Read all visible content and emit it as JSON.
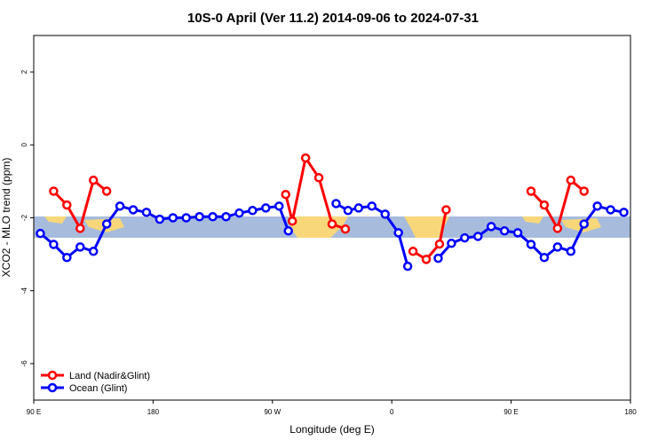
{
  "chart_data": {
    "type": "line",
    "title": "10S-0 April (Ver 11.2)   2014-09-06 to 2024-07-31",
    "x_label": "Longitude (deg E)",
    "y_label": "XCO2 - MLO trend (ppm)",
    "xlim": [
      90,
      540
    ],
    "ylim": [
      -7,
      3
    ],
    "xticks": [
      {
        "value": 90,
        "label": "90 E"
      },
      180,
      {
        "value": 270,
        "label": "90 W"
      },
      {
        "value": 360,
        "label": "0"
      },
      {
        "value": 450,
        "label": "90 E"
      },
      {
        "value": 540,
        "label": "180"
      }
    ],
    "yticks": [
      -6,
      -4,
      -2,
      0,
      2
    ],
    "legend": "bottom-left",
    "series": [
      {
        "name": "Land (Nadir&Glint)",
        "color": "#ff0000",
        "x": [
          105,
          115,
          125,
          135,
          145,
          null,
          280,
          285,
          295,
          305,
          315,
          325,
          null,
          376,
          386,
          396,
          401,
          null,
          465,
          475,
          485,
          495,
          505
        ],
        "values": [
          -1.27,
          -1.65,
          -2.29,
          -0.97,
          -1.27,
          null,
          -1.36,
          -2.09,
          -0.36,
          -0.9,
          -2.17,
          -2.31,
          null,
          -2.92,
          -3.14,
          -2.72,
          -1.78,
          null,
          -1.27,
          -1.65,
          -2.29,
          -0.97,
          -1.27
        ]
      },
      {
        "name": "Ocean (Glint)",
        "color": "#0000ff",
        "x": [
          95,
          105,
          115,
          125,
          135,
          145,
          155,
          165,
          175,
          185,
          195,
          205,
          215,
          225,
          235,
          245,
          255,
          265,
          275,
          282,
          null,
          318,
          327,
          335,
          345,
          355,
          365,
          372,
          null,
          395,
          405,
          415,
          425,
          435,
          445,
          455,
          465,
          475,
          485,
          495,
          505,
          515,
          525,
          535
        ],
        "values": [
          -2.43,
          -2.73,
          -3.09,
          -2.8,
          -2.92,
          -2.17,
          -1.68,
          -1.78,
          -1.85,
          -2.04,
          -2.0,
          -2.0,
          -1.97,
          -1.97,
          -1.97,
          -1.87,
          -1.8,
          -1.73,
          -1.68,
          -2.36,
          null,
          -1.61,
          -1.8,
          -1.73,
          -1.68,
          -1.9,
          -2.41,
          -3.33,
          null,
          -3.11,
          -2.7,
          -2.55,
          -2.51,
          -2.24,
          -2.36,
          -2.41,
          -2.73,
          -3.09,
          -2.8,
          -2.92,
          -2.17,
          -1.68,
          -1.78,
          -1.85
        ]
      }
    ]
  }
}
